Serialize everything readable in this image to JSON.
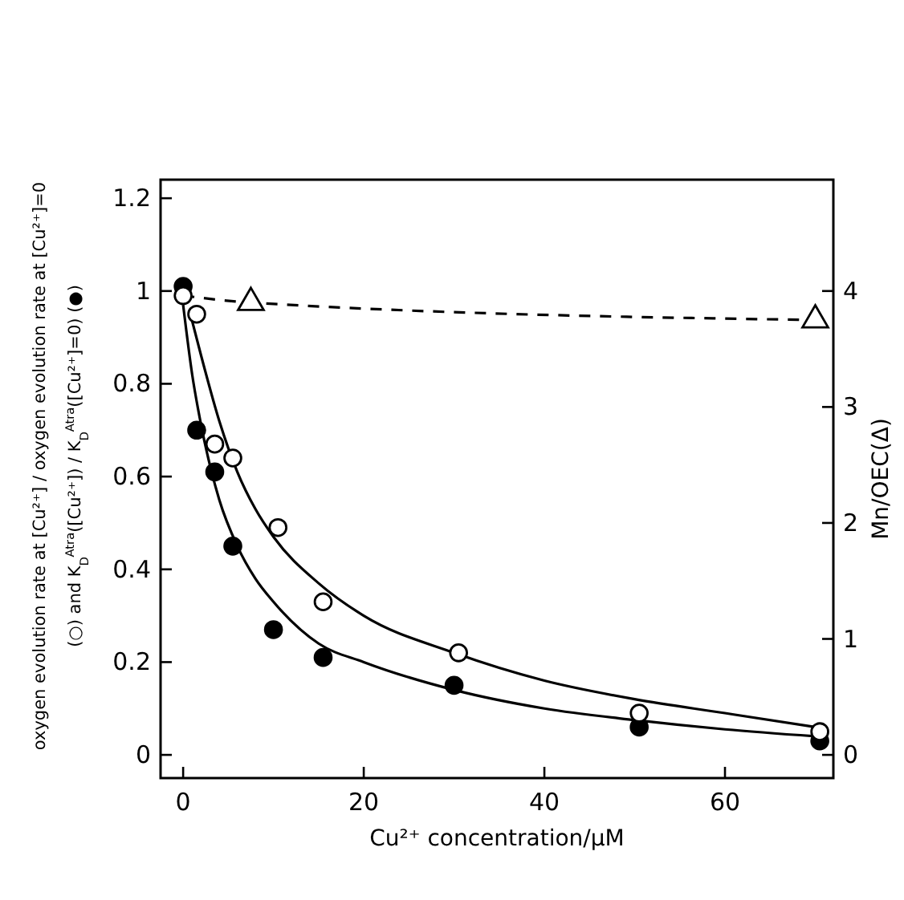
{
  "chart_data": {
    "type": "scatter",
    "xlabel": "Cu²⁺ concentration/μM",
    "ylabel": "oxygen evolution rate at [Cu²⁺] / oxygen evolution rate at [Cu²⁺]=0 (○) and K$_{D}$$^{Atra}$([Cu²⁺]) / K$_{D}$$^{Atra}$([Cu²⁺]=0) (●)",
    "y2label": "Mn/OEC(Δ)",
    "xlim": [
      -2.5,
      72
    ],
    "xticks": [
      0,
      20,
      40,
      60
    ],
    "ylim": [
      -0.05,
      1.24
    ],
    "yticks": [
      0,
      0.2,
      0.4,
      0.6,
      0.8,
      1.0,
      1.2
    ],
    "y2lim": [
      -0.2,
      4.96
    ],
    "y2ticks": [
      0,
      1,
      2,
      3,
      4
    ],
    "grid": false,
    "series": [
      {
        "type": "line",
        "color": "#000000",
        "line_style": "solid",
        "x": [
          0.8,
          2,
          4,
          6,
          8,
          10,
          15,
          20,
          30,
          40,
          50,
          60,
          70
        ],
        "values": [
          0.95,
          0.86,
          0.72,
          0.61,
          0.53,
          0.47,
          0.37,
          0.3,
          0.22,
          0.16,
          0.12,
          0.09,
          0.06
        ]
      },
      {
        "type": "line",
        "color": "#000000",
        "line_style": "solid",
        "x": [
          0,
          1,
          2,
          4,
          6,
          8,
          10,
          15,
          20,
          30,
          40,
          50,
          60,
          70
        ],
        "values": [
          0.97,
          0.82,
          0.71,
          0.55,
          0.45,
          0.38,
          0.33,
          0.24,
          0.2,
          0.14,
          0.1,
          0.075,
          0.055,
          0.04
        ]
      },
      {
        "type": "line",
        "color": "#000000",
        "line_style": "dashed",
        "axis": "y2",
        "x": [
          0,
          7.5,
          70
        ],
        "values": [
          3.96,
          3.9,
          3.75
        ]
      },
      {
        "color": "#000000",
        "marker": "circle",
        "x": [
          0,
          1.5,
          3.5,
          5.5,
          10,
          15.5,
          30,
          50.5,
          70.5
        ],
        "values": [
          1.01,
          0.7,
          0.61,
          0.45,
          0.27,
          0.21,
          0.15,
          0.06,
          0.03
        ]
      },
      {
        "color": "#ffffff",
        "marker": "circle",
        "x": [
          0,
          1.5,
          3.5,
          5.5,
          10.5,
          15.5,
          30.5,
          50.5,
          70.5
        ],
        "values": [
          0.99,
          0.95,
          0.67,
          0.64,
          0.49,
          0.33,
          0.22,
          0.09,
          0.05
        ]
      },
      {
        "color": "#ffffff",
        "marker": "triangle",
        "axis": "y2",
        "x": [
          7.5,
          70
        ],
        "values": [
          3.9,
          3.75
        ]
      }
    ]
  }
}
